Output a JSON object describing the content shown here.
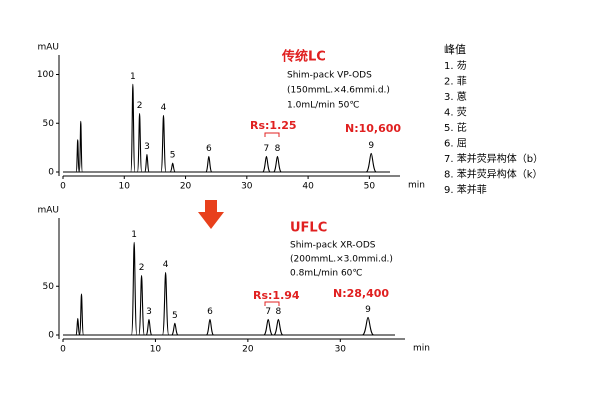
{
  "chart_data": [
    {
      "type": "line",
      "title": "传统LC",
      "notes": [
        "Shim-pack VP-ODS",
        "(150mmL.×4.6mmi.d.)",
        "1.0mL/min   50℃"
      ],
      "rs_label": "Rs:1.25",
      "n_label": "N:10,600",
      "xlabel": "min",
      "ylabel": "mAU",
      "color": "#000000",
      "xlim": [
        0,
        55
      ],
      "ylim": [
        0,
        120
      ],
      "xticks": [
        0,
        10,
        20,
        30,
        40,
        50
      ],
      "yticks": [
        0,
        50,
        100
      ],
      "peaks": [
        {
          "label": null,
          "time": 2.4,
          "height": 33
        },
        {
          "label": null,
          "time": 2.9,
          "height": 52
        },
        {
          "label": "1",
          "time": 11.4,
          "height": 90
        },
        {
          "label": "2",
          "time": 12.5,
          "height": 60
        },
        {
          "label": "3",
          "time": 13.7,
          "height": 18
        },
        {
          "label": "4",
          "time": 16.4,
          "height": 58
        },
        {
          "label": "5",
          "time": 17.9,
          "height": 9
        },
        {
          "label": "6",
          "time": 23.8,
          "height": 16
        },
        {
          "label": "7",
          "time": 33.2,
          "height": 16
        },
        {
          "label": "8",
          "time": 35.0,
          "height": 16
        },
        {
          "label": "9",
          "time": 50.3,
          "height": 19
        }
      ]
    },
    {
      "type": "line",
      "title": "UFLC",
      "notes": [
        "Shim-pack XR-ODS",
        "(200mmL.×3.0mmi.d.)",
        "0.8mL/min 60℃"
      ],
      "rs_label": "Rs:1.94",
      "n_label": "N:28,400",
      "xlabel": "min",
      "ylabel": "mAU",
      "color": "#000000",
      "xlim": [
        0,
        37
      ],
      "ylim": [
        0,
        120
      ],
      "xticks": [
        0,
        10,
        20,
        30
      ],
      "yticks": [
        0,
        50
      ],
      "peaks": [
        {
          "label": null,
          "time": 1.6,
          "height": 17
        },
        {
          "label": null,
          "time": 2.0,
          "height": 42
        },
        {
          "label": "1",
          "time": 7.7,
          "height": 95
        },
        {
          "label": "2",
          "time": 8.5,
          "height": 61
        },
        {
          "label": "3",
          "time": 9.3,
          "height": 16
        },
        {
          "label": "4",
          "time": 11.1,
          "height": 64
        },
        {
          "label": "5",
          "time": 12.1,
          "height": 12
        },
        {
          "label": "6",
          "time": 15.9,
          "height": 16
        },
        {
          "label": "7",
          "time": 22.2,
          "height": 16
        },
        {
          "label": "8",
          "time": 23.3,
          "height": 16
        },
        {
          "label": "9",
          "time": 33.0,
          "height": 18
        }
      ]
    }
  ],
  "legend": {
    "title": "峰值",
    "items": [
      "1. 芴",
      "2. 菲",
      "3. 蒽",
      "4. 荧",
      "5. 芘",
      "6. 屈",
      "7. 苯并荧异构体（b）",
      "8. 苯并荧异构体（k）",
      "9. 苯并菲"
    ]
  }
}
